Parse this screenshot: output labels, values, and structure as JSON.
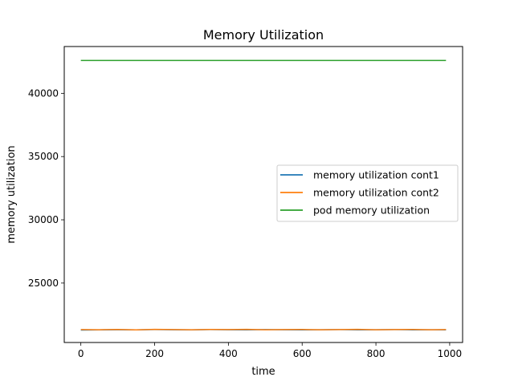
{
  "chart_data": {
    "type": "line",
    "title": "Memory Utilization",
    "xlabel": "time",
    "ylabel": "memory utilization",
    "xlim": [
      -45,
      1035
    ],
    "ylim": [
      20300,
      43700
    ],
    "xticks": [
      0,
      200,
      400,
      600,
      800,
      1000
    ],
    "yticks": [
      25000,
      30000,
      35000,
      40000
    ],
    "grid": false,
    "legend_position": "center-right",
    "x": [
      0,
      50,
      100,
      150,
      200,
      250,
      300,
      350,
      400,
      450,
      500,
      550,
      600,
      650,
      700,
      750,
      800,
      850,
      900,
      950,
      990
    ],
    "series": [
      {
        "name": "memory utilization cont1",
        "color": "#1f77b4",
        "values": [
          21280,
          21300,
          21310,
          21300,
          21320,
          21310,
          21300,
          21320,
          21310,
          21300,
          21320,
          21310,
          21300,
          21310,
          21320,
          21300,
          21310,
          21320,
          21300,
          21310,
          21300
        ]
      },
      {
        "name": "memory utilization cont2",
        "color": "#ff7f0e",
        "values": [
          21320,
          21310,
          21330,
          21300,
          21340,
          21320,
          21310,
          21330,
          21320,
          21340,
          21310,
          21320,
          21330,
          21310,
          21320,
          21340,
          21310,
          21320,
          21330,
          21310,
          21320
        ]
      },
      {
        "name": "pod memory utilization",
        "color": "#2ca02c",
        "values": [
          42600,
          42600,
          42600,
          42600,
          42600,
          42600,
          42600,
          42600,
          42600,
          42600,
          42600,
          42600,
          42600,
          42600,
          42600,
          42600,
          42600,
          42600,
          42600,
          42600,
          42600
        ]
      }
    ]
  }
}
